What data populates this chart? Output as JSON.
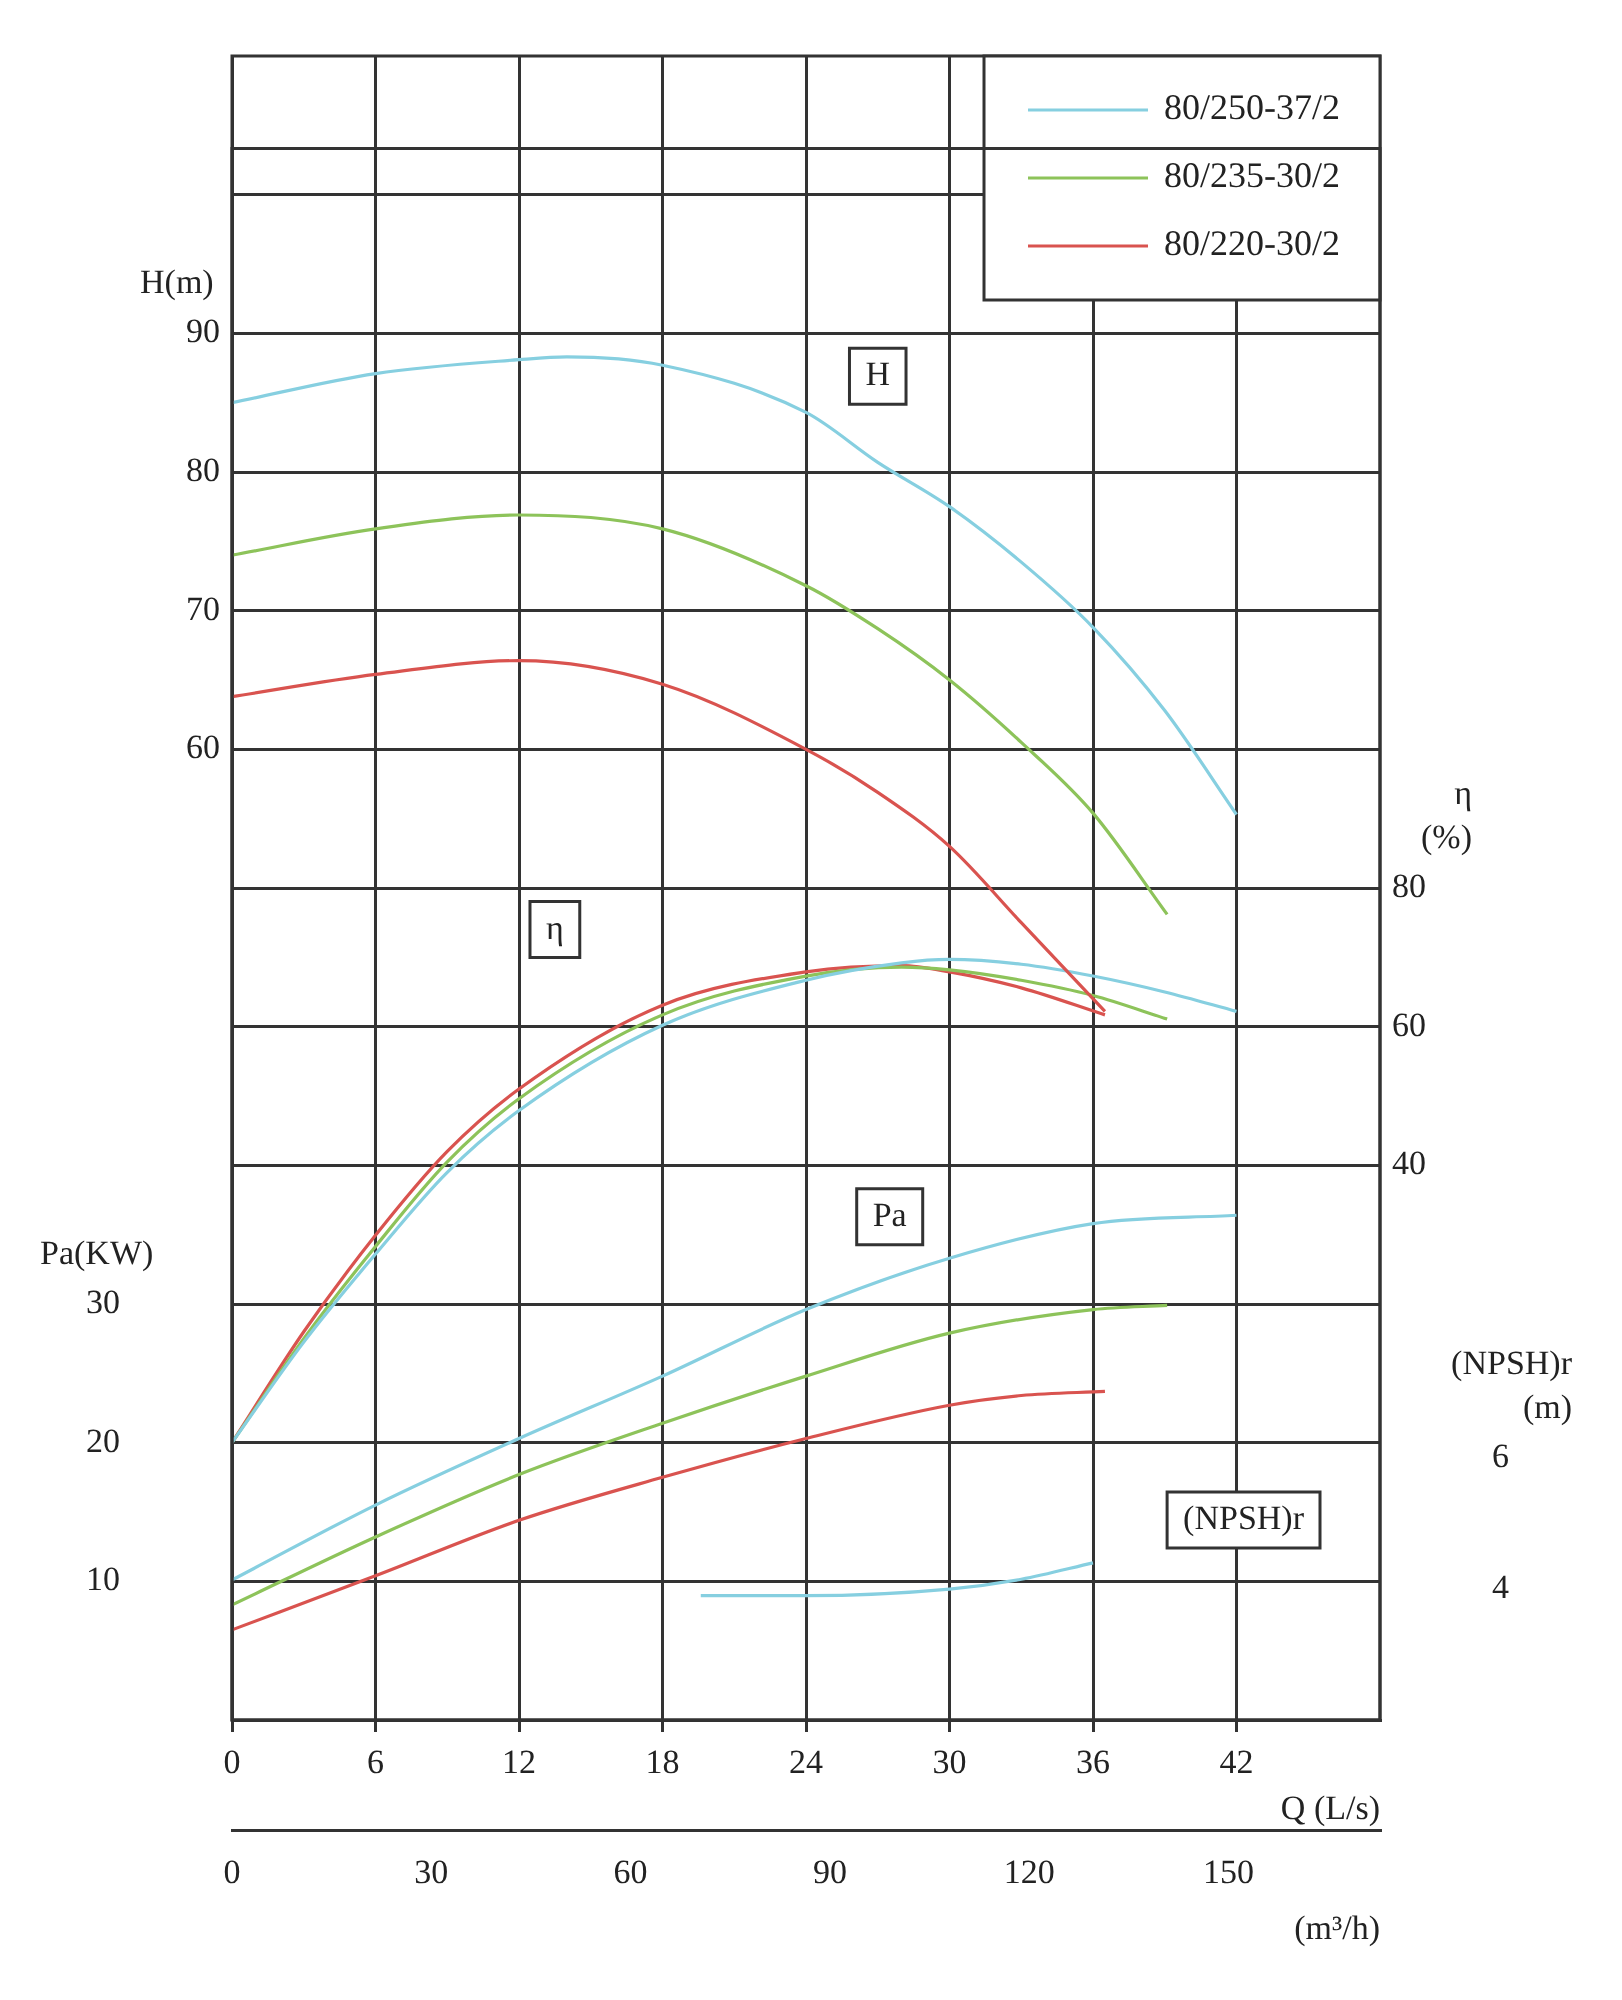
{
  "chart_data": [
    {
      "type": "line",
      "xlabel": "Q (L/s)",
      "x2label": "(m³/h)",
      "ylabel": "H(m)",
      "y2label": "η (%)",
      "y3label": "Pa(KW)",
      "xlim": [
        0,
        48
      ],
      "xticks": [
        0,
        6,
        12,
        18,
        24,
        30,
        36,
        42
      ],
      "x2lim": [
        0,
        172.8
      ],
      "x2ticks": [
        0,
        30,
        60,
        90,
        120,
        150
      ],
      "ylim": [
        -10,
        110
      ],
      "yticks": [
        {
          "value": 0,
          "label": null
        },
        {
          "value": 10,
          "label": null
        },
        {
          "value": 20,
          "label": null
        },
        {
          "value": 30,
          "label": null
        },
        {
          "value": 40,
          "label": null
        },
        {
          "value": 50,
          "label": null
        },
        60,
        70,
        80,
        90,
        {
          "value": 100,
          "label": null
        }
      ],
      "y2lim": [
        -40,
        200
      ],
      "y2ticks": [
        40,
        60,
        80
      ],
      "y3lim": [
        0,
        120
      ],
      "y3ticks": [
        10,
        20,
        30
      ],
      "grid": true,
      "legend": "top right",
      "annotations": [
        {
          "text": "H",
          "x": 27,
          "y": 86.9
        },
        {
          "text": "η",
          "x": 13.5,
          "y": 47
        },
        {
          "text": "Pa",
          "x": 27.5,
          "y": 26.3
        }
      ],
      "series": [
        {
          "name": "80/250-37/2",
          "color": "#86cfe0",
          "axis": "y",
          "x": [
            0,
            6,
            12,
            14,
            18,
            24,
            27,
            30,
            33,
            36,
            39,
            42
          ],
          "values": [
            85.0,
            87.1,
            88.1,
            88.3,
            87.7,
            84.3,
            80.7,
            77.5,
            73.5,
            68.8,
            62.8,
            55.3
          ]
        },
        {
          "name": "80/235-30/2",
          "color": "#8dc35a",
          "axis": "y",
          "x": [
            0,
            6,
            12,
            18,
            24,
            27,
            30,
            33,
            36,
            39.1
          ],
          "values": [
            74.0,
            75.9,
            76.9,
            75.9,
            71.8,
            68.7,
            65.0,
            60.5,
            55.4,
            48.1
          ]
        },
        {
          "name": "80/220-30/2",
          "color": "#d9534f",
          "axis": "y",
          "x": [
            0,
            6,
            12,
            18,
            24,
            27,
            30,
            33,
            36.5
          ],
          "values": [
            63.8,
            65.4,
            66.4,
            64.7,
            60.0,
            56.9,
            53.0,
            47.5,
            41.1
          ]
        },
        {
          "color": "#86cfe0",
          "axis": "y2",
          "x": [
            0,
            3,
            6,
            9,
            12,
            18,
            24,
            28,
            30,
            33,
            36,
            39,
            42
          ],
          "values": [
            0,
            14.5,
            27.2,
            39,
            47.9,
            60.2,
            66.7,
            69.2,
            69.7,
            69,
            67.3,
            65,
            62.2
          ]
        },
        {
          "color": "#8dc35a",
          "axis": "y2",
          "x": [
            0,
            3,
            6,
            9,
            12,
            18,
            24,
            28,
            30,
            33,
            36,
            39.1
          ],
          "values": [
            0,
            15,
            28.3,
            40.5,
            49.6,
            61.7,
            67.3,
            68.6,
            68.2,
            66.7,
            64.5,
            61.1
          ]
        },
        {
          "color": "#d9534f",
          "axis": "y2",
          "x": [
            0,
            3,
            6,
            9,
            12,
            18,
            24,
            28,
            30,
            33,
            36.5
          ],
          "values": [
            0,
            16,
            29.9,
            42,
            51.0,
            63.1,
            67.9,
            68.8,
            67.9,
            65.6,
            61.7
          ]
        },
        {
          "color": "#86cfe0",
          "axis": "y3",
          "x": [
            0,
            6,
            12,
            18,
            24,
            30,
            36,
            42
          ],
          "values": [
            10.1,
            15.5,
            20.3,
            24.8,
            29.6,
            33.3,
            35.8,
            36.4
          ]
        },
        {
          "color": "#8dc35a",
          "axis": "y3",
          "x": [
            0,
            6,
            12,
            18,
            24,
            30,
            36,
            39.1
          ],
          "values": [
            8.3,
            13.2,
            17.7,
            21.4,
            24.8,
            27.9,
            29.6,
            29.9
          ]
        },
        {
          "color": "#d9534f",
          "axis": "y3",
          "x": [
            0,
            6,
            12,
            18,
            24,
            30,
            33,
            36.5
          ],
          "values": [
            6.5,
            10.4,
            14.4,
            17.5,
            20.3,
            22.7,
            23.4,
            23.7
          ]
        }
      ]
    },
    {
      "type": "line",
      "y2label": "(NPSH)r (m)",
      "xlim": [
        0,
        48
      ],
      "y2lim": [
        2,
        26
      ],
      "y2ticks": [
        4,
        6
      ],
      "tick_labels": "y",
      "annotations": [
        "(NPSH)r"
      ],
      "series": [
        {
          "color": "#86cfe0",
          "axis": "y2",
          "x": [
            19.6,
            24,
            30,
            33,
            36
          ],
          "values": [
            3.9,
            3.9,
            4.0,
            4.15,
            4.4
          ]
        }
      ]
    }
  ]
}
